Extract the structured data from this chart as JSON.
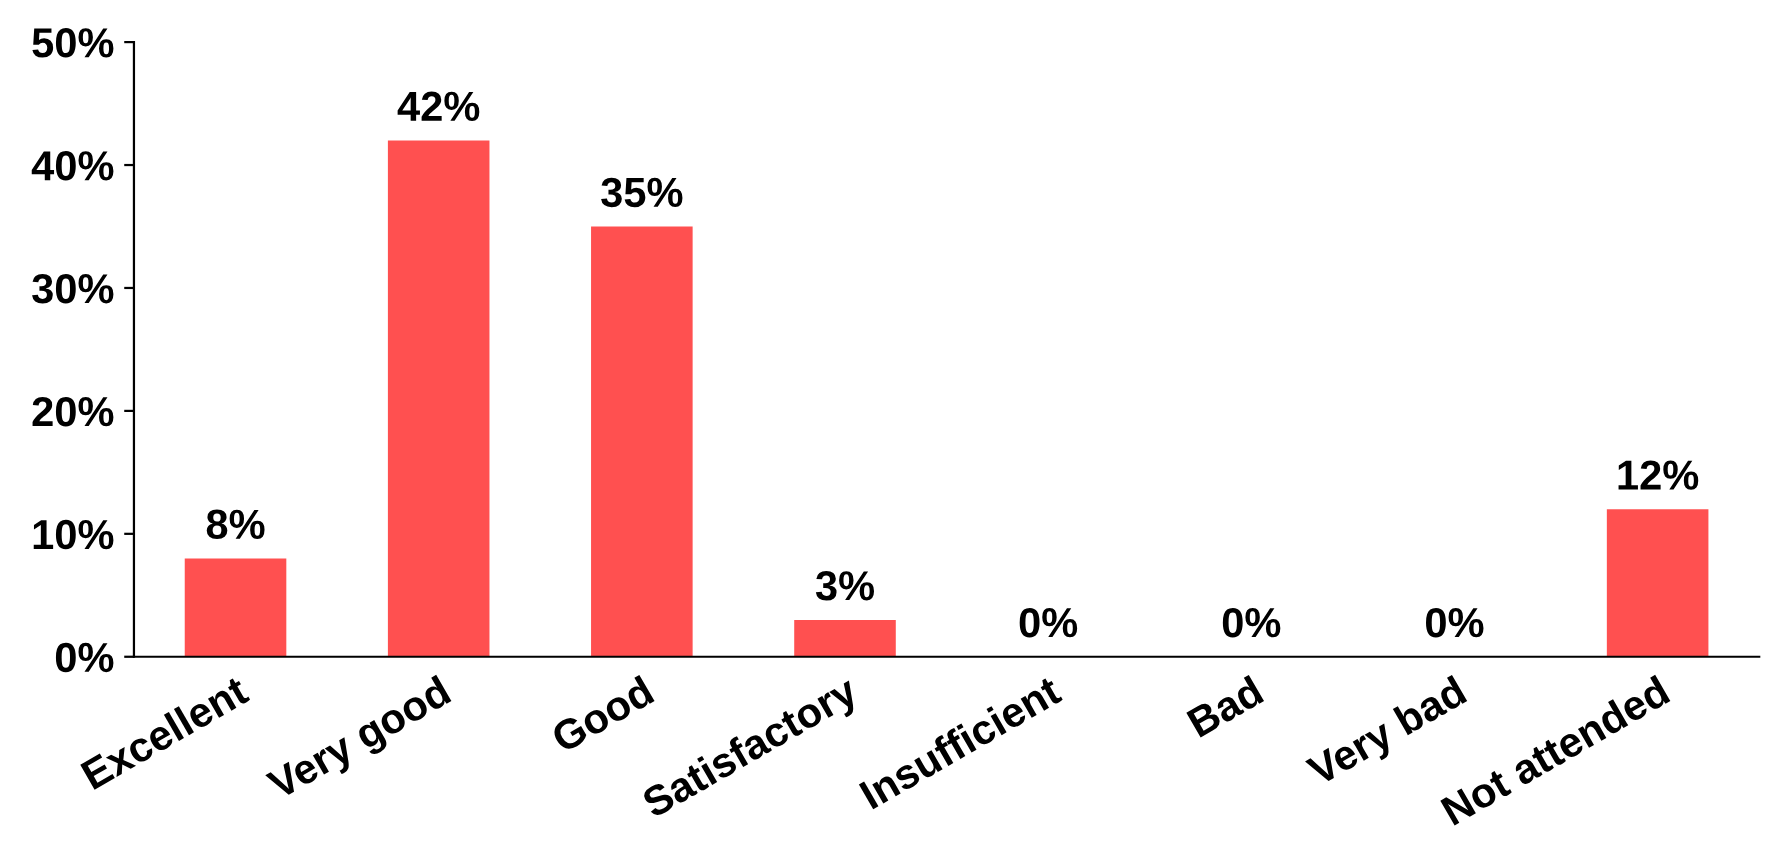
{
  "chart_data": {
    "type": "bar",
    "categories": [
      "Excellent",
      "Very good",
      "Good",
      "Satisfactory",
      "Insufficient",
      "Bad",
      "Very bad",
      "Not attended"
    ],
    "values": [
      8,
      42,
      35,
      3,
      0,
      0,
      0,
      12
    ],
    "value_labels": [
      "8%",
      "42%",
      "35%",
      "3%",
      "0%",
      "0%",
      "0%",
      "12%"
    ],
    "color": "#ff5050",
    "ylim": [
      0,
      50
    ],
    "yticks": [
      {
        "value": 0,
        "label": "0%"
      },
      {
        "value": 10,
        "label": "10%"
      },
      {
        "value": 20,
        "label": "20%"
      },
      {
        "value": 30,
        "label": "30%"
      },
      {
        "value": 40,
        "label": "40%"
      },
      {
        "value": 50,
        "label": "50%"
      }
    ],
    "grid": false,
    "legend": false
  }
}
